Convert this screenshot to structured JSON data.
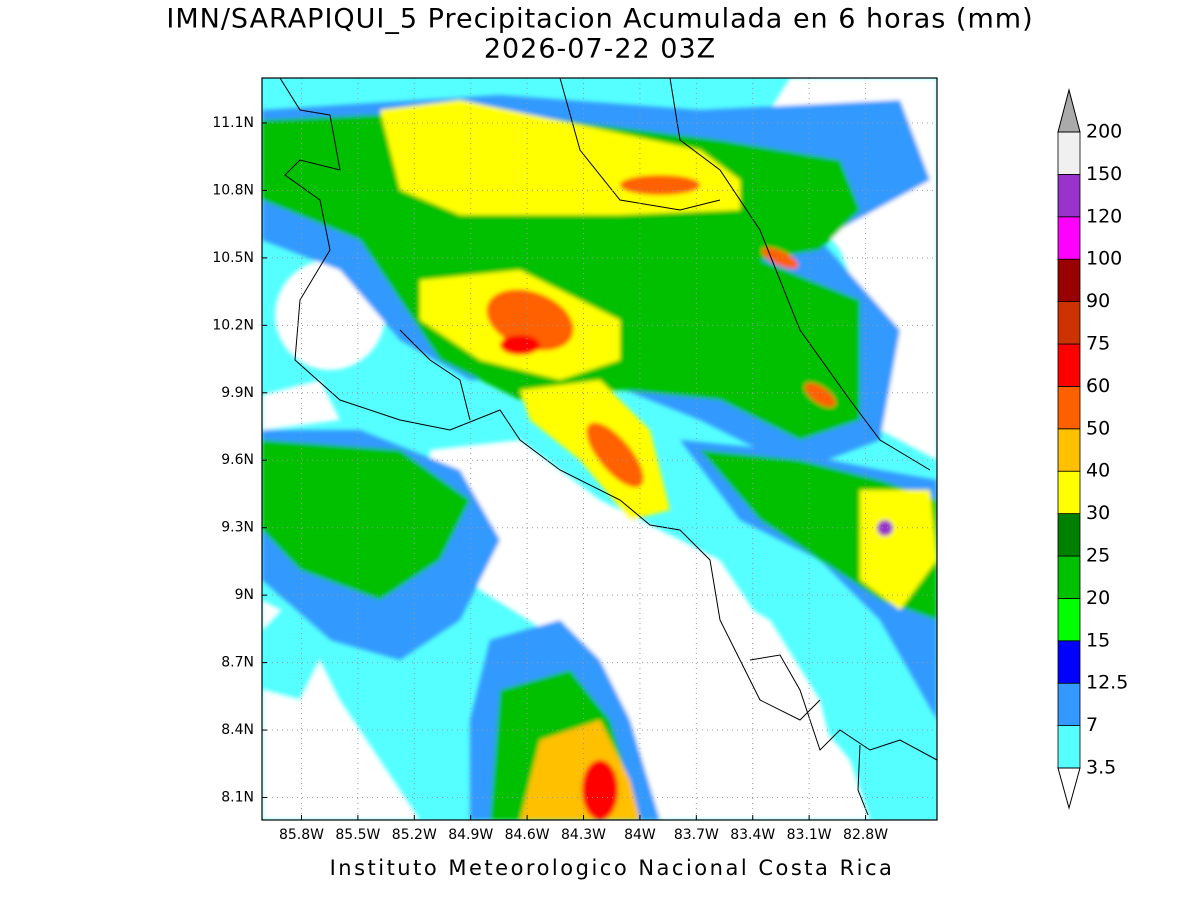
{
  "title": "IMN/SARAPIQUI_5 Precipitacion Acumulada en 6 horas (mm)",
  "subtitle": "2026-07-22 03Z",
  "xlim": [
    -86.01,
    -82.42
  ],
  "ylim": [
    8.0,
    11.3
  ],
  "yticks": [
    {
      "value": 11.1,
      "label": "11.1N"
    },
    {
      "value": 10.8,
      "label": "10.8N"
    },
    {
      "value": 10.5,
      "label": "10.5N"
    },
    {
      "value": 10.2,
      "label": "10.2N"
    },
    {
      "value": 9.9,
      "label": "9.9N"
    },
    {
      "value": 9.6,
      "label": "9.6N"
    },
    {
      "value": 9.3,
      "label": "9.3N"
    },
    {
      "value": 9.0,
      "label": "9N"
    },
    {
      "value": 8.7,
      "label": "8.7N"
    },
    {
      "value": 8.4,
      "label": "8.4N"
    },
    {
      "value": 8.1,
      "label": "8.1N"
    }
  ],
  "xticks": [
    {
      "value": -85.8,
      "label": "85.8W"
    },
    {
      "value": -85.5,
      "label": "85.5W"
    },
    {
      "value": -85.2,
      "label": "85.2W"
    },
    {
      "value": -84.9,
      "label": "84.9W"
    },
    {
      "value": -84.6,
      "label": "84.6W"
    },
    {
      "value": -84.3,
      "label": "84.3W"
    },
    {
      "value": -84.0,
      "label": "84W"
    },
    {
      "value": -83.7,
      "label": "83.7W"
    },
    {
      "value": -83.4,
      "label": "83.4W"
    },
    {
      "value": -83.1,
      "label": "83.1W"
    },
    {
      "value": -82.8,
      "label": "82.8W"
    }
  ],
  "grid": true,
  "colorbar": {
    "levels": [
      3.5,
      7,
      12.5,
      15,
      20,
      25,
      30,
      40,
      50,
      60,
      75,
      90,
      100,
      120,
      150,
      200
    ],
    "colors": [
      "#55ffff",
      "#3399ff",
      "#0000ff",
      "#00ff00",
      "#00c000",
      "#008000",
      "#ffff00",
      "#ffc000",
      "#ff6000",
      "#ff0000",
      "#cc3300",
      "#990000",
      "#ff00ff",
      "#9933cc",
      "#f0f0f0"
    ],
    "under_color": "#ffffff",
    "over_color": "#aaaaaa"
  },
  "footer": "Instituto Meteorologico Nacional Costa Rica"
}
